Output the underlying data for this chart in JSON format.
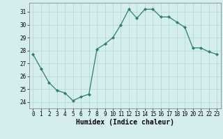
{
  "x": [
    0,
    1,
    2,
    3,
    4,
    5,
    6,
    7,
    8,
    9,
    10,
    11,
    12,
    13,
    14,
    15,
    16,
    17,
    18,
    19,
    20,
    21,
    22,
    23
  ],
  "y": [
    27.7,
    26.6,
    25.5,
    24.9,
    24.7,
    24.1,
    24.4,
    24.6,
    28.1,
    28.5,
    29.0,
    30.0,
    31.2,
    30.5,
    31.2,
    31.2,
    30.6,
    30.6,
    30.2,
    29.8,
    28.2,
    28.2,
    27.9,
    27.7
  ],
  "line_color": "#2e7d6e",
  "marker": "D",
  "marker_size": 2.0,
  "bg_color": "#d4eeee",
  "grid_color": "#b8d8d8",
  "xlabel": "Humidex (Indice chaleur)",
  "ylim": [
    23.5,
    31.7
  ],
  "xlim": [
    -0.5,
    23.5
  ],
  "yticks": [
    24,
    25,
    26,
    27,
    28,
    29,
    30,
    31
  ],
  "xticks": [
    0,
    1,
    2,
    3,
    4,
    5,
    6,
    7,
    8,
    9,
    10,
    11,
    12,
    13,
    14,
    15,
    16,
    17,
    18,
    19,
    20,
    21,
    22,
    23
  ],
  "tick_fontsize": 5.5,
  "xlabel_fontsize": 7.0,
  "linewidth": 0.9
}
